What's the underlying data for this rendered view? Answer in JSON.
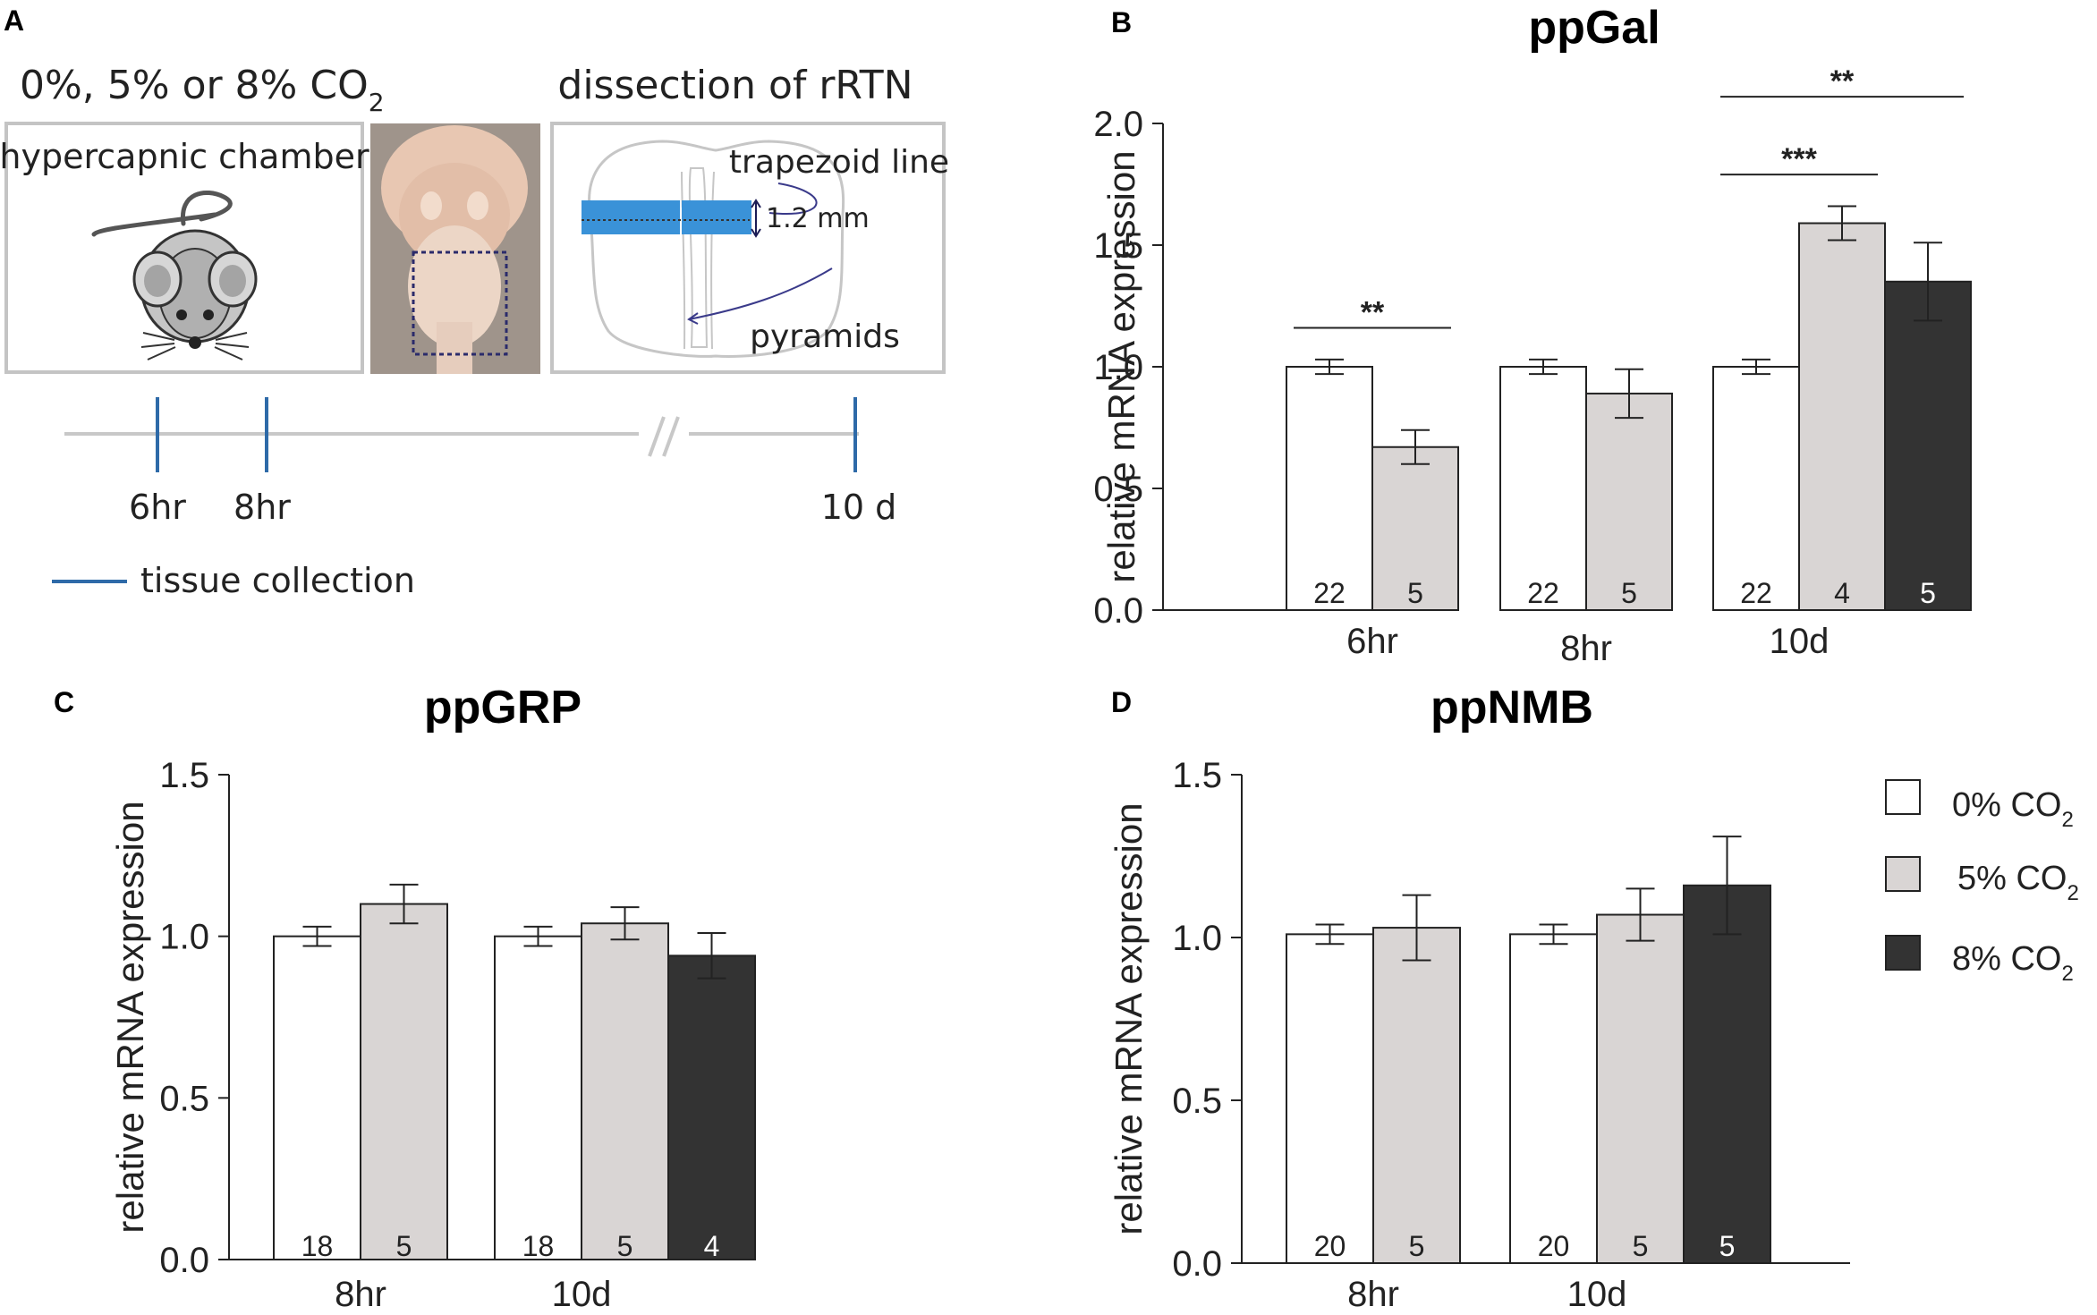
{
  "panel_a": {
    "letter": "A",
    "condition_prefix": "0%, 5% or 8% CO",
    "condition_sub": "2",
    "chamber_label": "hypercapnic chamber",
    "dissection_label": "dissection of rRTN",
    "trapezoid_label": "trapezoid line",
    "mm_label": "1.2 mm",
    "pyramids_label": "pyramids",
    "timeline": {
      "t1": "6hr",
      "t2": "8hr",
      "t3": "10 d"
    },
    "legend_label": "tissue collection",
    "colors": {
      "tick": "#2e6aa8",
      "band": "#3a92d8",
      "line": "#c8c8c8"
    }
  },
  "legend": {
    "items": [
      {
        "label": "0% CO",
        "sub": "2",
        "color": "#ffffff"
      },
      {
        "label": "5% CO",
        "sub": "2",
        "color": "#d9d5d4"
      },
      {
        "label": "8% CO",
        "sub": "2",
        "color": "#333333"
      }
    ]
  },
  "chart_data": [
    {
      "panel": "B",
      "type": "bar",
      "title": "ppGal",
      "ylabel": "relative mRNA expression",
      "ylim": [
        0,
        2.0
      ],
      "yticks": [
        "0.0",
        "0.5",
        "1.0",
        "1.5",
        "2.0"
      ],
      "categories": [
        "6hr",
        "8hr",
        "10d"
      ],
      "series": [
        {
          "name": "0% CO2",
          "values": [
            1.0,
            1.0,
            1.0
          ],
          "errors": [
            0.03,
            0.03,
            0.03
          ],
          "n": [
            "22",
            "22",
            "22"
          ]
        },
        {
          "name": "5% CO2",
          "values": [
            0.67,
            0.89,
            1.59
          ],
          "errors": [
            0.07,
            0.1,
            0.07
          ],
          "n": [
            "5",
            "5",
            "4"
          ]
        },
        {
          "name": "8% CO2",
          "values": [
            null,
            null,
            1.35
          ],
          "errors": [
            null,
            null,
            0.16
          ],
          "n": [
            null,
            null,
            "5"
          ]
        }
      ],
      "annotations": [
        {
          "label": "**",
          "category": 0,
          "from": 0,
          "to": 1,
          "y": 1.16
        },
        {
          "label": "***",
          "category": 2,
          "from": 0,
          "to": 1,
          "y": 1.79
        },
        {
          "label": "**",
          "category": 2,
          "from": 0,
          "to": 2,
          "y": 2.11
        }
      ]
    },
    {
      "panel": "C",
      "type": "bar",
      "title": "ppGRP",
      "ylabel": "relative mRNA expression",
      "ylim": [
        0,
        1.5
      ],
      "yticks": [
        "0.0",
        "0.5",
        "1.0",
        "1.5"
      ],
      "categories": [
        "8hr",
        "10d"
      ],
      "series": [
        {
          "name": "0% CO2",
          "values": [
            1.0,
            1.0
          ],
          "errors": [
            0.03,
            0.03
          ],
          "n": [
            "18",
            "18"
          ]
        },
        {
          "name": "5% CO2",
          "values": [
            1.1,
            1.04
          ],
          "errors": [
            0.06,
            0.05
          ],
          "n": [
            "5",
            "5"
          ]
        },
        {
          "name": "8% CO2",
          "values": [
            null,
            0.94
          ],
          "errors": [
            null,
            0.07
          ],
          "n": [
            null,
            "4"
          ]
        }
      ],
      "annotations": []
    },
    {
      "panel": "D",
      "type": "bar",
      "title": "ppNMB",
      "ylabel": "relative mRNA expression",
      "ylim": [
        0,
        1.5
      ],
      "yticks": [
        "0.0",
        "0.5",
        "1.0",
        "1.5"
      ],
      "categories": [
        "8hr",
        "10d"
      ],
      "series": [
        {
          "name": "0% CO2",
          "values": [
            1.01,
            1.01
          ],
          "errors": [
            0.03,
            0.03
          ],
          "n": [
            "20",
            "20"
          ]
        },
        {
          "name": "5% CO2",
          "values": [
            1.03,
            1.07
          ],
          "errors": [
            0.1,
            0.08
          ],
          "n": [
            "5",
            "5"
          ]
        },
        {
          "name": "8% CO2",
          "values": [
            null,
            1.16
          ],
          "errors": [
            null,
            0.15
          ],
          "n": [
            null,
            "5"
          ]
        }
      ],
      "annotations": []
    }
  ]
}
